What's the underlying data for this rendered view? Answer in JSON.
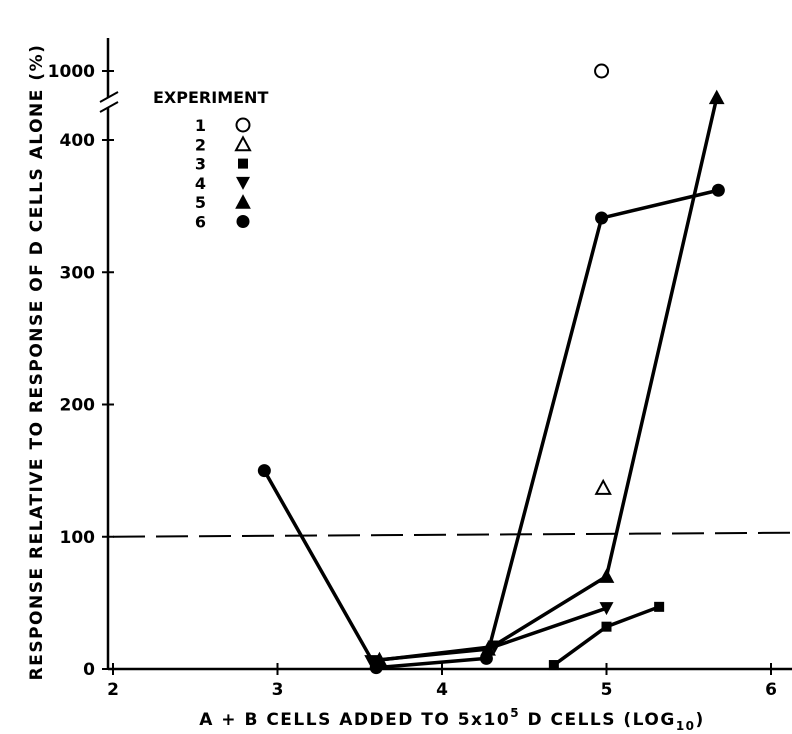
{
  "chart_data": {
    "type": "scatter",
    "xlabel_main": "A + B CELLS ADDED TO 5x10",
    "xlabel_sup": "5",
    "xlabel_mid": " D CELLS (LOG",
    "xlabel_sub": "10",
    "xlabel_end": ")",
    "ylabel": "RESPONSE RELATIVE TO RESPONSE OF D CELLS ALONE (%)",
    "xlim": [
      2,
      6.2
    ],
    "x_ticks": [
      "2",
      "3",
      "4",
      "5",
      "6"
    ],
    "y_ticks": [
      "0",
      "100",
      "200",
      "300",
      "400",
      "1000"
    ],
    "y_axis_break": true,
    "reference_line": {
      "y": 100,
      "style": "dashed"
    },
    "legend": {
      "title": "EXPERIMENT",
      "placement": "top-left",
      "entries": [
        {
          "label": "1",
          "marker": "circle-open"
        },
        {
          "label": "2",
          "marker": "triangle-up-open"
        },
        {
          "label": "3",
          "marker": "square-filled"
        },
        {
          "label": "4",
          "marker": "triangle-down-filled"
        },
        {
          "label": "5",
          "marker": "triangle-up-filled"
        },
        {
          "label": "6",
          "marker": "circle-filled"
        }
      ]
    },
    "series": [
      {
        "name": "1",
        "marker": "circle-open",
        "connected": false,
        "points": [
          [
            4.97,
            1000
          ]
        ]
      },
      {
        "name": "2",
        "marker": "triangle-up-open",
        "connected": false,
        "points": [
          [
            4.98,
            137
          ]
        ]
      },
      {
        "name": "3",
        "marker": "square-filled",
        "connected": true,
        "points": [
          [
            4.68,
            3
          ],
          [
            5.0,
            32
          ],
          [
            5.32,
            47
          ]
        ]
      },
      {
        "name": "4",
        "marker": "triangle-down-filled",
        "connected": true,
        "points": [
          [
            3.57,
            6
          ],
          [
            4.32,
            17
          ],
          [
            5.0,
            46
          ]
        ]
      },
      {
        "name": "5",
        "marker": "triangle-up-filled",
        "connected": true,
        "points": [
          [
            3.62,
            7
          ],
          [
            4.28,
            15
          ],
          [
            5.0,
            70
          ],
          [
            5.67,
            432
          ]
        ]
      },
      {
        "name": "6",
        "marker": "circle-filled",
        "connected": true,
        "points": [
          [
            2.92,
            150
          ],
          [
            3.6,
            1
          ],
          [
            4.27,
            8
          ],
          [
            4.97,
            341
          ],
          [
            5.68,
            362
          ]
        ]
      }
    ]
  }
}
